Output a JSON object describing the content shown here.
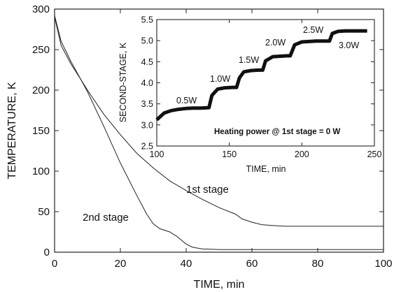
{
  "chart_data": [
    {
      "type": "line",
      "xlabel": "TIME, min",
      "ylabel": "TEMPERATURE, K",
      "xlim": [
        0,
        100
      ],
      "ylim": [
        0,
        300
      ],
      "xticks": [
        "0",
        "20",
        "40",
        "60",
        "80",
        "100"
      ],
      "yticks": [
        "0",
        "50",
        "100",
        "150",
        "200",
        "250",
        "300"
      ],
      "grid": false,
      "series": [
        {
          "name": "1st stage",
          "x": [
            0,
            2,
            5,
            8,
            10,
            15,
            20,
            25,
            30,
            35,
            40,
            45,
            50,
            55,
            57,
            60,
            63,
            66,
            70,
            80,
            90,
            100
          ],
          "y": [
            292,
            260,
            235,
            213,
            200,
            170,
            145,
            122,
            104,
            88,
            76,
            65,
            55,
            47,
            41,
            37,
            34,
            33,
            32,
            32,
            32,
            32
          ]
        },
        {
          "name": "2nd stage",
          "x": [
            0,
            2,
            5,
            8,
            10,
            15,
            20,
            25,
            28,
            30,
            32,
            35,
            37,
            40,
            42,
            45,
            48,
            50,
            60,
            70,
            80,
            90,
            100
          ],
          "y": [
            290,
            255,
            232,
            213,
            198,
            155,
            110,
            70,
            47,
            35,
            29,
            25,
            20,
            10,
            6,
            4,
            3.5,
            3.3,
            3.3,
            3.3,
            3.3,
            3.3,
            3.3
          ]
        }
      ],
      "annotations": [
        "1st stage",
        "2nd stage"
      ]
    },
    {
      "type": "line",
      "xlabel": "TIME, min",
      "ylabel": "SECOND-STAGE, K",
      "xlim": [
        100,
        250
      ],
      "ylim": [
        2.5,
        5.5
      ],
      "xticks": [
        "100",
        "150",
        "200",
        "250"
      ],
      "yticks": [
        "2.5",
        "3.0",
        "3.5",
        "4.0",
        "4.5",
        "5.0",
        "5.5"
      ],
      "grid": false,
      "series": [
        {
          "x": [
            100,
            105,
            110,
            115,
            120,
            125,
            130,
            136,
            138,
            142,
            147,
            152,
            155,
            157,
            160,
            165,
            170,
            173,
            175,
            180,
            185,
            190,
            192,
            195,
            200,
            205,
            210,
            215,
            219,
            221,
            225,
            230,
            235,
            240,
            245
          ],
          "y": [
            3.12,
            3.28,
            3.34,
            3.37,
            3.39,
            3.4,
            3.4,
            3.41,
            3.7,
            3.85,
            3.88,
            3.89,
            3.89,
            4.12,
            4.26,
            4.29,
            4.3,
            4.3,
            4.52,
            4.62,
            4.63,
            4.64,
            4.64,
            4.9,
            4.97,
            4.98,
            4.99,
            4.99,
            4.99,
            5.17,
            5.22,
            5.23,
            5.23,
            5.23,
            5.23
          ]
        }
      ],
      "annotations": [
        "0.5W",
        "1.0W",
        "1.5W",
        "2.0W",
        "2.5W",
        "3.0W",
        "Heating power @ 1st stage = 0 W"
      ]
    }
  ]
}
